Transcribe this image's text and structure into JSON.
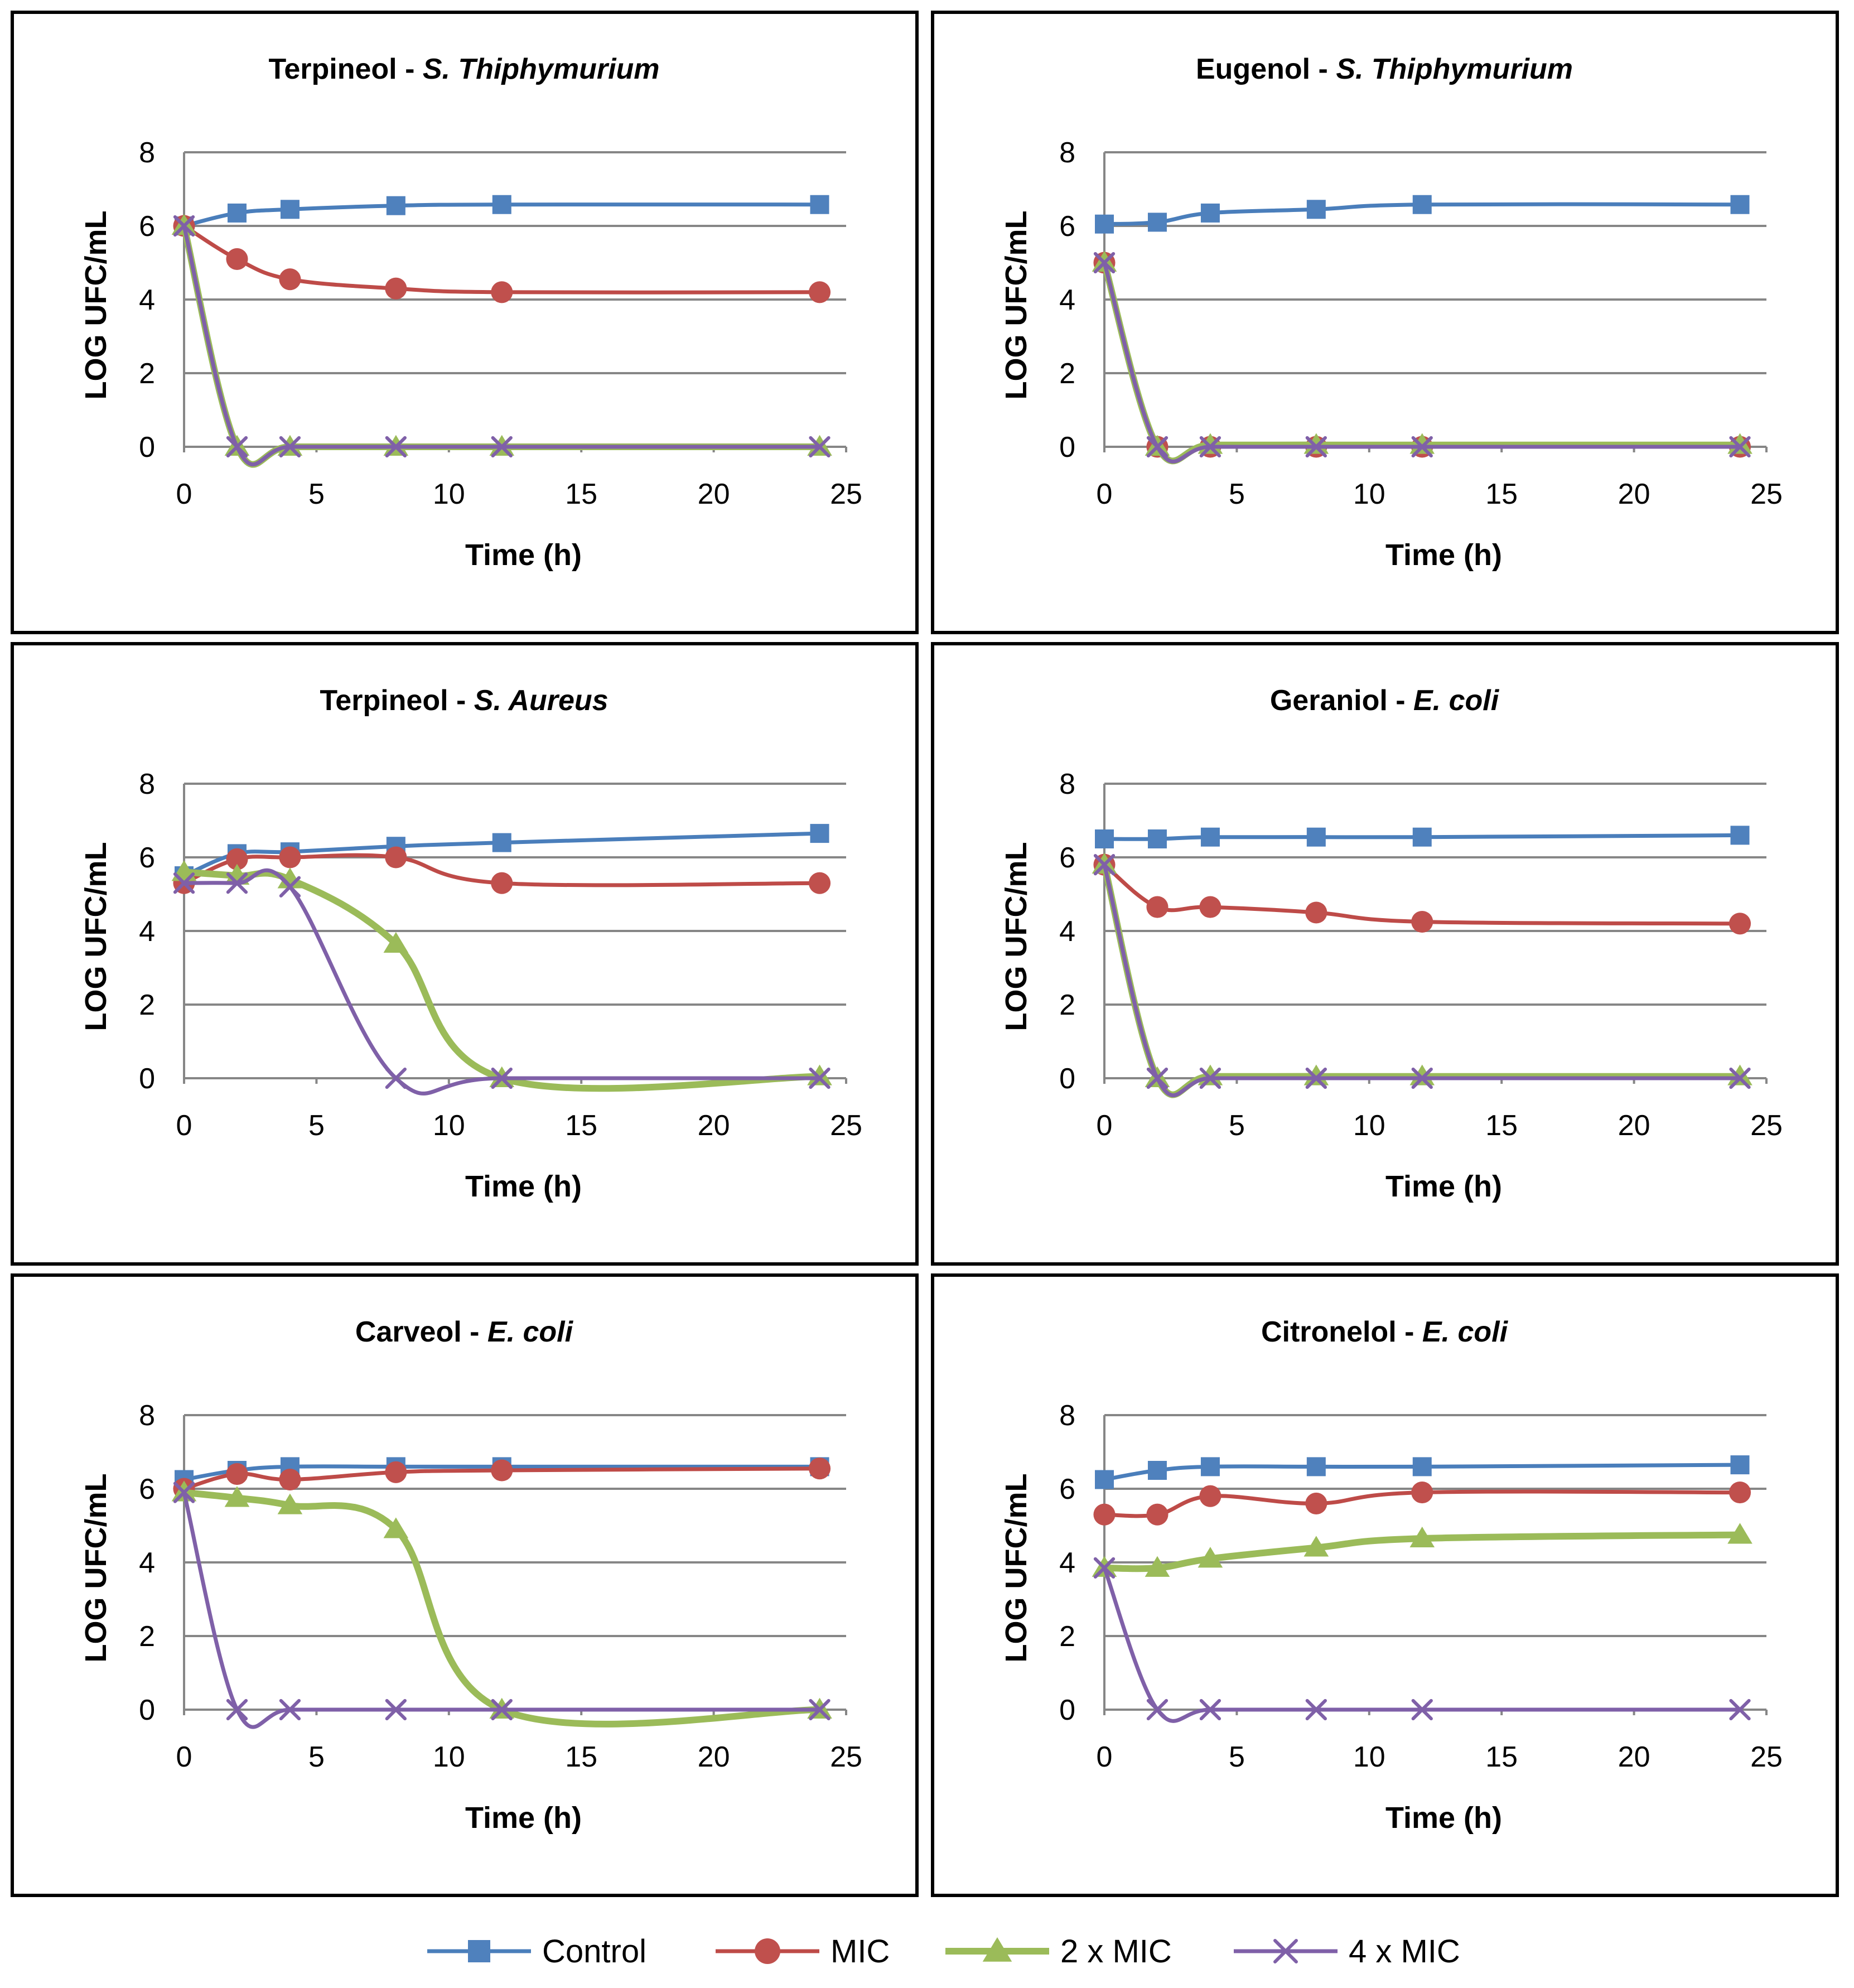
{
  "colors": {
    "control": "#4a7ebb",
    "control_marker": "#4f81bd",
    "mic": "#be4b48",
    "mic_marker": "#c0504d",
    "mic2": "#9bbb59",
    "mic4": "#7f60a8",
    "grid": "#868686",
    "axis": "#868686",
    "frame": "#000000"
  },
  "legend": {
    "items": [
      {
        "key": "control",
        "label": "Control",
        "marker": "square"
      },
      {
        "key": "mic",
        "label": "MIC",
        "marker": "circle"
      },
      {
        "key": "mic2",
        "label": "2 x MIC",
        "marker": "triangle"
      },
      {
        "key": "mic4",
        "label": "4 x MIC",
        "marker": "x"
      }
    ]
  },
  "chart_data": [
    {
      "type": "line",
      "title_main": "Terpineol - ",
      "title_species": "S. Thiphymurium",
      "xlabel": "Time (h)",
      "ylabel": "LOG UFC/mL",
      "xlim": [
        0,
        25
      ],
      "ylim": [
        0,
        8
      ],
      "xticks": [
        0,
        5,
        10,
        15,
        20,
        25
      ],
      "yticks": [
        0,
        2,
        4,
        6,
        8
      ],
      "x": [
        0,
        2,
        4,
        8,
        12,
        24
      ],
      "series": [
        {
          "key": "control",
          "name": "Control",
          "values": [
            6.0,
            6.35,
            6.45,
            6.55,
            6.58,
            6.58
          ]
        },
        {
          "key": "mic",
          "name": "MIC",
          "values": [
            6.0,
            5.1,
            4.55,
            4.3,
            4.2,
            4.2
          ]
        },
        {
          "key": "mic2",
          "name": "2 x MIC",
          "values": [
            6.0,
            0,
            0,
            0,
            0,
            0
          ]
        },
        {
          "key": "mic4",
          "name": "4 x MIC",
          "values": [
            6.0,
            0,
            0,
            0,
            0,
            0
          ]
        }
      ]
    },
    {
      "type": "line",
      "title_main": "Eugenol - ",
      "title_species": "S. Thiphymurium",
      "xlabel": "Time (h)",
      "ylabel": "LOG UFC/mL",
      "xlim": [
        0,
        25
      ],
      "ylim": [
        0,
        8
      ],
      "xticks": [
        0,
        5,
        10,
        15,
        20,
        25
      ],
      "yticks": [
        0,
        2,
        4,
        6,
        8
      ],
      "x": [
        0,
        2,
        4,
        8,
        12,
        24
      ],
      "series": [
        {
          "key": "control",
          "name": "Control",
          "values": [
            6.05,
            6.1,
            6.35,
            6.45,
            6.58,
            6.58
          ]
        },
        {
          "key": "mic",
          "name": "MIC",
          "values": [
            5.0,
            0,
            0,
            0,
            0,
            0
          ]
        },
        {
          "key": "mic2",
          "name": "2 x MIC",
          "values": [
            5.0,
            0,
            0.05,
            0.05,
            0.05,
            0.05
          ]
        },
        {
          "key": "mic4",
          "name": "4 x MIC",
          "values": [
            5.0,
            0,
            0,
            0,
            0,
            0
          ]
        }
      ]
    },
    {
      "type": "line",
      "title_main": "Terpineol - ",
      "title_species": "S. Aureus",
      "xlabel": "Time (h)",
      "ylabel": "LOG UFC/mL",
      "xlim": [
        0,
        25
      ],
      "ylim": [
        0,
        8
      ],
      "xticks": [
        0,
        5,
        10,
        15,
        20,
        25
      ],
      "yticks": [
        0,
        2,
        4,
        6,
        8
      ],
      "x": [
        0,
        2,
        4,
        8,
        12,
        24
      ],
      "series": [
        {
          "key": "control",
          "name": "Control",
          "values": [
            5.5,
            6.1,
            6.15,
            6.3,
            6.4,
            6.65
          ]
        },
        {
          "key": "mic",
          "name": "MIC",
          "values": [
            5.3,
            5.95,
            6.0,
            6.0,
            5.3,
            5.3
          ]
        },
        {
          "key": "mic2",
          "name": "2 x MIC",
          "values": [
            5.6,
            5.5,
            5.4,
            3.65,
            0,
            0.05
          ]
        },
        {
          "key": "mic4",
          "name": "4 x MIC",
          "values": [
            5.3,
            5.3,
            5.2,
            0,
            0,
            0
          ]
        }
      ]
    },
    {
      "type": "line",
      "title_main": "Geraniol - ",
      "title_species": "E. coli",
      "xlabel": "Time (h)",
      "ylabel": "LOG UFC/mL",
      "xlim": [
        0,
        25
      ],
      "ylim": [
        0,
        8
      ],
      "xticks": [
        0,
        5,
        10,
        15,
        20,
        25
      ],
      "yticks": [
        0,
        2,
        4,
        6,
        8
      ],
      "x": [
        0,
        2,
        4,
        8,
        12,
        24
      ],
      "series": [
        {
          "key": "control",
          "name": "Control",
          "values": [
            6.5,
            6.5,
            6.55,
            6.55,
            6.55,
            6.6
          ]
        },
        {
          "key": "mic",
          "name": "MIC",
          "values": [
            5.8,
            4.65,
            4.65,
            4.5,
            4.25,
            4.2
          ]
        },
        {
          "key": "mic2",
          "name": "2 x MIC",
          "values": [
            5.8,
            0,
            0.05,
            0.05,
            0.05,
            0.05
          ]
        },
        {
          "key": "mic4",
          "name": "4 x MIC",
          "values": [
            5.8,
            0,
            0,
            0,
            0,
            0
          ]
        }
      ]
    },
    {
      "type": "line",
      "title_main": "Carveol - ",
      "title_species": "E. coli",
      "xlabel": "Time (h)",
      "ylabel": "LOG UFC/mL",
      "xlim": [
        0,
        25
      ],
      "ylim": [
        0,
        8
      ],
      "xticks": [
        0,
        5,
        10,
        15,
        20,
        25
      ],
      "yticks": [
        0,
        2,
        4,
        6,
        8
      ],
      "x": [
        0,
        2,
        4,
        8,
        12,
        24
      ],
      "series": [
        {
          "key": "control",
          "name": "Control",
          "values": [
            6.25,
            6.5,
            6.6,
            6.6,
            6.6,
            6.6
          ]
        },
        {
          "key": "mic",
          "name": "MIC",
          "values": [
            6.0,
            6.4,
            6.25,
            6.45,
            6.5,
            6.55
          ]
        },
        {
          "key": "mic2",
          "name": "2 x MIC",
          "values": [
            5.9,
            5.75,
            5.55,
            4.9,
            0,
            0
          ]
        },
        {
          "key": "mic4",
          "name": "4 x MIC",
          "values": [
            5.9,
            0,
            0,
            0,
            0,
            0
          ]
        }
      ]
    },
    {
      "type": "line",
      "title_main": "Citronelol - ",
      "title_species": "E. coli",
      "xlabel": "Time (h)",
      "ylabel": "LOG UFC/mL",
      "xlim": [
        0,
        25
      ],
      "ylim": [
        0,
        8
      ],
      "xticks": [
        0,
        5,
        10,
        15,
        20,
        25
      ],
      "yticks": [
        0,
        2,
        4,
        6,
        8
      ],
      "x": [
        0,
        2,
        4,
        8,
        12,
        24
      ],
      "series": [
        {
          "key": "control",
          "name": "Control",
          "values": [
            6.25,
            6.5,
            6.6,
            6.6,
            6.6,
            6.65
          ]
        },
        {
          "key": "mic",
          "name": "MIC",
          "values": [
            5.3,
            5.3,
            5.8,
            5.6,
            5.9,
            5.9
          ]
        },
        {
          "key": "mic2",
          "name": "2 x MIC",
          "values": [
            3.85,
            3.85,
            4.1,
            4.4,
            4.65,
            4.75
          ]
        },
        {
          "key": "mic4",
          "name": "4 x MIC",
          "values": [
            3.85,
            0,
            0,
            0,
            0,
            0
          ]
        }
      ]
    }
  ]
}
